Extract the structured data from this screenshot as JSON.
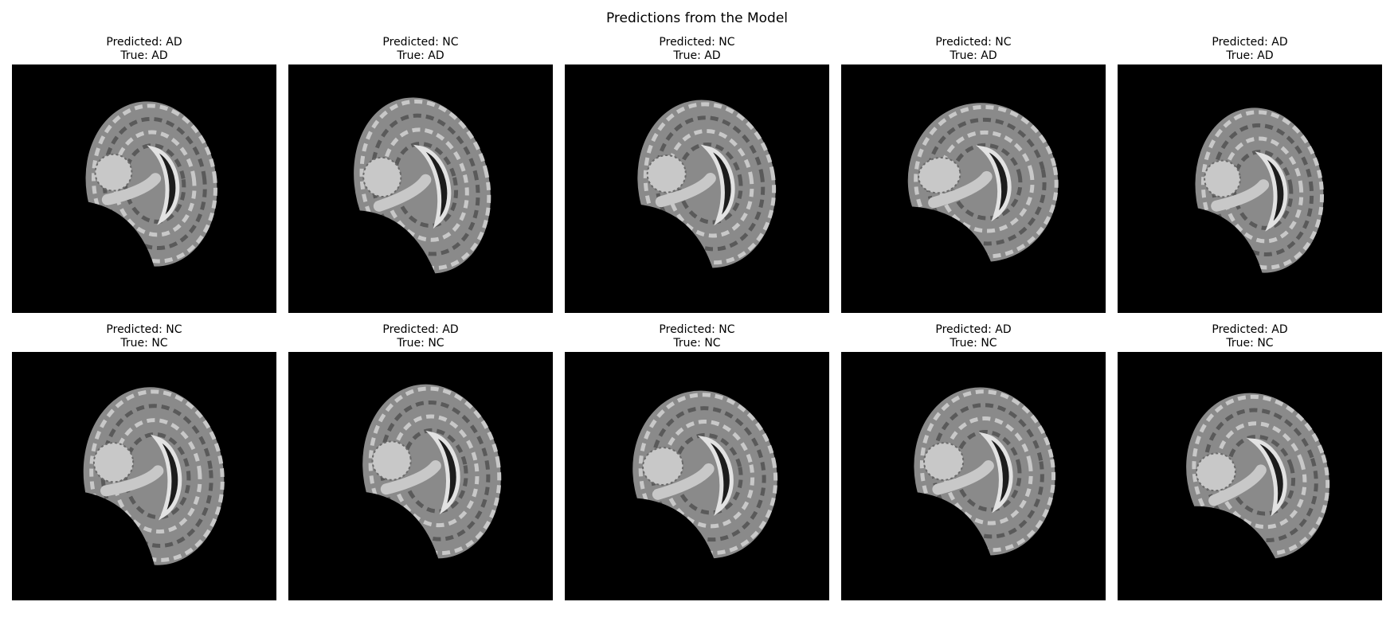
{
  "figure": {
    "title": "Predictions from the Model"
  },
  "panels": [
    {
      "predicted": "Predicted: AD",
      "true": "True: AD"
    },
    {
      "predicted": "Predicted: NC",
      "true": "True: AD"
    },
    {
      "predicted": "Predicted: NC",
      "true": "True: AD"
    },
    {
      "predicted": "Predicted: NC",
      "true": "True: AD"
    },
    {
      "predicted": "Predicted: AD",
      "true": "True: AD"
    },
    {
      "predicted": "Predicted: NC",
      "true": "True: NC"
    },
    {
      "predicted": "Predicted: AD",
      "true": "True: NC"
    },
    {
      "predicted": "Predicted: NC",
      "true": "True: NC"
    },
    {
      "predicted": "Predicted: AD",
      "true": "True: NC"
    },
    {
      "predicted": "Predicted: AD",
      "true": "True: NC"
    }
  ],
  "colors": {
    "background": "#000000",
    "tissue": "#8a8a8a",
    "cortex": "#c8c8c8",
    "ventricle": "#1c1c1c"
  }
}
